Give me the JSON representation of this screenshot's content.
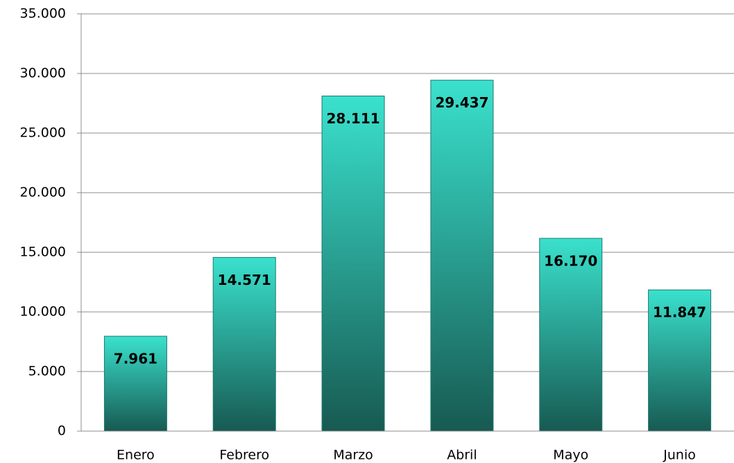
{
  "chart_data": {
    "type": "bar",
    "categories": [
      "Enero",
      "Febrero",
      "Marzo",
      "Abril",
      "Mayo",
      "Junio"
    ],
    "values": [
      7961,
      14571,
      28111,
      29437,
      16170,
      11847
    ],
    "value_labels": [
      "7.961",
      "14.571",
      "28.111",
      "29.437",
      "16.170",
      "11.847"
    ],
    "color": "#34c9b7",
    "ylim": [
      0,
      35000
    ],
    "yticks": [
      0,
      {
        "value": 5000,
        "label": "5.000"
      },
      {
        "value": 10000,
        "label": "10.000"
      },
      {
        "value": 15000,
        "label": "15.000"
      },
      {
        "value": 20000,
        "label": "20.000"
      },
      {
        "value": 25000,
        "label": "25.000"
      },
      {
        "value": 30000,
        "label": "30.000"
      },
      {
        "value": 35000,
        "label": "35.000"
      }
    ],
    "grid": true
  }
}
